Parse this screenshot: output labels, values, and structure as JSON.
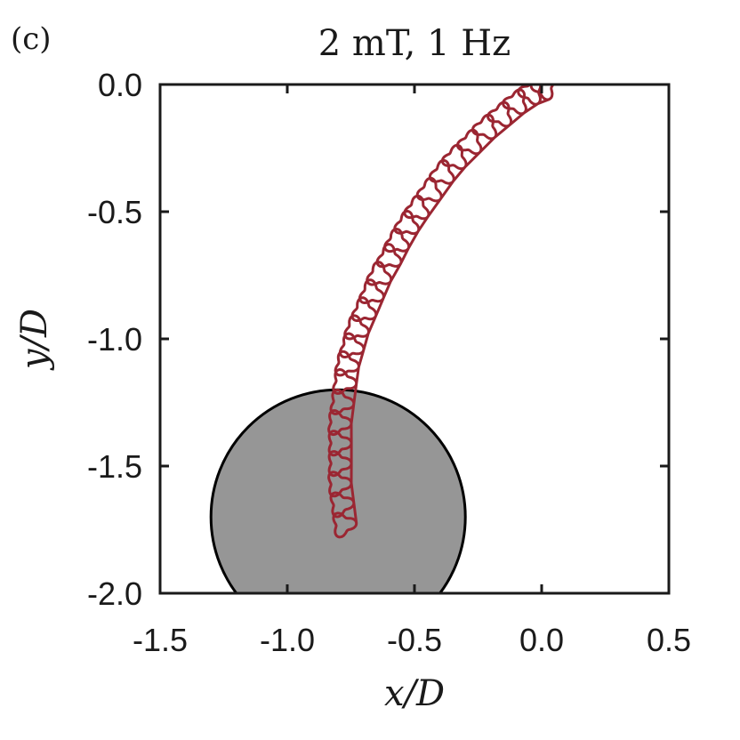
{
  "panel_label": "(c)",
  "chart_data": {
    "type": "line",
    "title": "2 mT, 1 Hz",
    "xlabel": "x/D",
    "ylabel": "y/D",
    "xlim": [
      -1.5,
      0.5
    ],
    "ylim": [
      -2.0,
      0.0
    ],
    "xticks": [
      -1.5,
      -1.0,
      -0.5,
      0.0,
      0.5
    ],
    "yticks": [
      0.0,
      -0.5,
      -1.0,
      -1.5,
      -2.0
    ],
    "xtick_labels": [
      "-1.5",
      "-1.0",
      "-0.5",
      "0.0",
      "0.5"
    ],
    "ytick_labels": [
      "0.0",
      "-0.5",
      "-1.0",
      "-1.5",
      "-2.0"
    ],
    "grid": false,
    "obstacle": {
      "shape": "circle",
      "center": [
        -0.8,
        -1.7
      ],
      "radius": 0.5,
      "color": "#969696"
    },
    "series": [
      {
        "color": "#9b2632",
        "loop_radius": 0.04,
        "loop_centers": [
          [
            -0.78,
            -1.73
          ],
          [
            -0.79,
            -1.65
          ],
          [
            -0.8,
            -1.57
          ],
          [
            -0.8,
            -1.49
          ],
          [
            -0.8,
            -1.41
          ],
          [
            -0.8,
            -1.33
          ],
          [
            -0.79,
            -1.25
          ],
          [
            -0.78,
            -1.17
          ],
          [
            -0.77,
            -1.1
          ],
          [
            -0.75,
            -1.03
          ],
          [
            -0.73,
            -0.96
          ],
          [
            -0.7,
            -0.89
          ],
          [
            -0.67,
            -0.82
          ],
          [
            -0.64,
            -0.75
          ],
          [
            -0.6,
            -0.68
          ],
          [
            -0.57,
            -0.62
          ],
          [
            -0.53,
            -0.55
          ],
          [
            -0.49,
            -0.49
          ],
          [
            -0.44,
            -0.42
          ],
          [
            -0.39,
            -0.35
          ],
          [
            -0.34,
            -0.29
          ],
          [
            -0.28,
            -0.23
          ],
          [
            -0.22,
            -0.17
          ],
          [
            -0.16,
            -0.12
          ],
          [
            -0.1,
            -0.07
          ],
          [
            -0.04,
            -0.03
          ],
          [
            0.01,
            -0.01
          ]
        ]
      }
    ]
  }
}
